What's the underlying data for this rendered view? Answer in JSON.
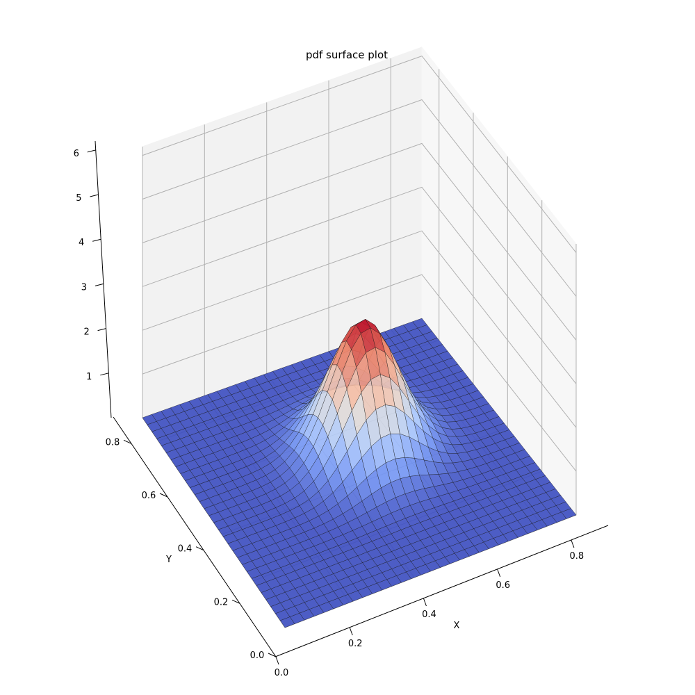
{
  "chart_data": {
    "type": "surface",
    "title": "pdf surface plot",
    "xlabel": "X",
    "ylabel": "Y",
    "zlabel": "",
    "xlim": [
      0.0,
      0.9
    ],
    "ylim": [
      0.0,
      0.9
    ],
    "zlim": [
      0,
      6.2
    ],
    "x_ticks": [
      0.0,
      0.2,
      0.4,
      0.6,
      0.8
    ],
    "y_ticks": [
      0.0,
      0.2,
      0.4,
      0.6,
      0.8
    ],
    "z_ticks": [
      1,
      2,
      3,
      4,
      5,
      6
    ],
    "x_tick_labels": [
      "0.0",
      "0.2",
      "0.4",
      "0.6",
      "0.8"
    ],
    "y_tick_labels": [
      "0.0",
      "0.2",
      "0.4",
      "0.6",
      "0.8"
    ],
    "z_tick_labels": [
      "1",
      "2",
      "3",
      "4",
      "5",
      "6"
    ],
    "surface": {
      "function": "bivariate normal pdf",
      "mean": [
        0.5,
        0.5
      ],
      "std": [
        0.1,
        0.1
      ],
      "peak": 3.0,
      "grid_rows": 30,
      "grid_cols": 30
    },
    "colormap": "coolwarm",
    "colormap_stops": [
      "#3b4cc0",
      "#6f92f3",
      "#aac7fd",
      "#dddcdc",
      "#f7b89c",
      "#e7745b",
      "#b40426"
    ],
    "grid": true,
    "pane_color": "#f2f2f2",
    "grid_color": "#b0b0b0"
  }
}
